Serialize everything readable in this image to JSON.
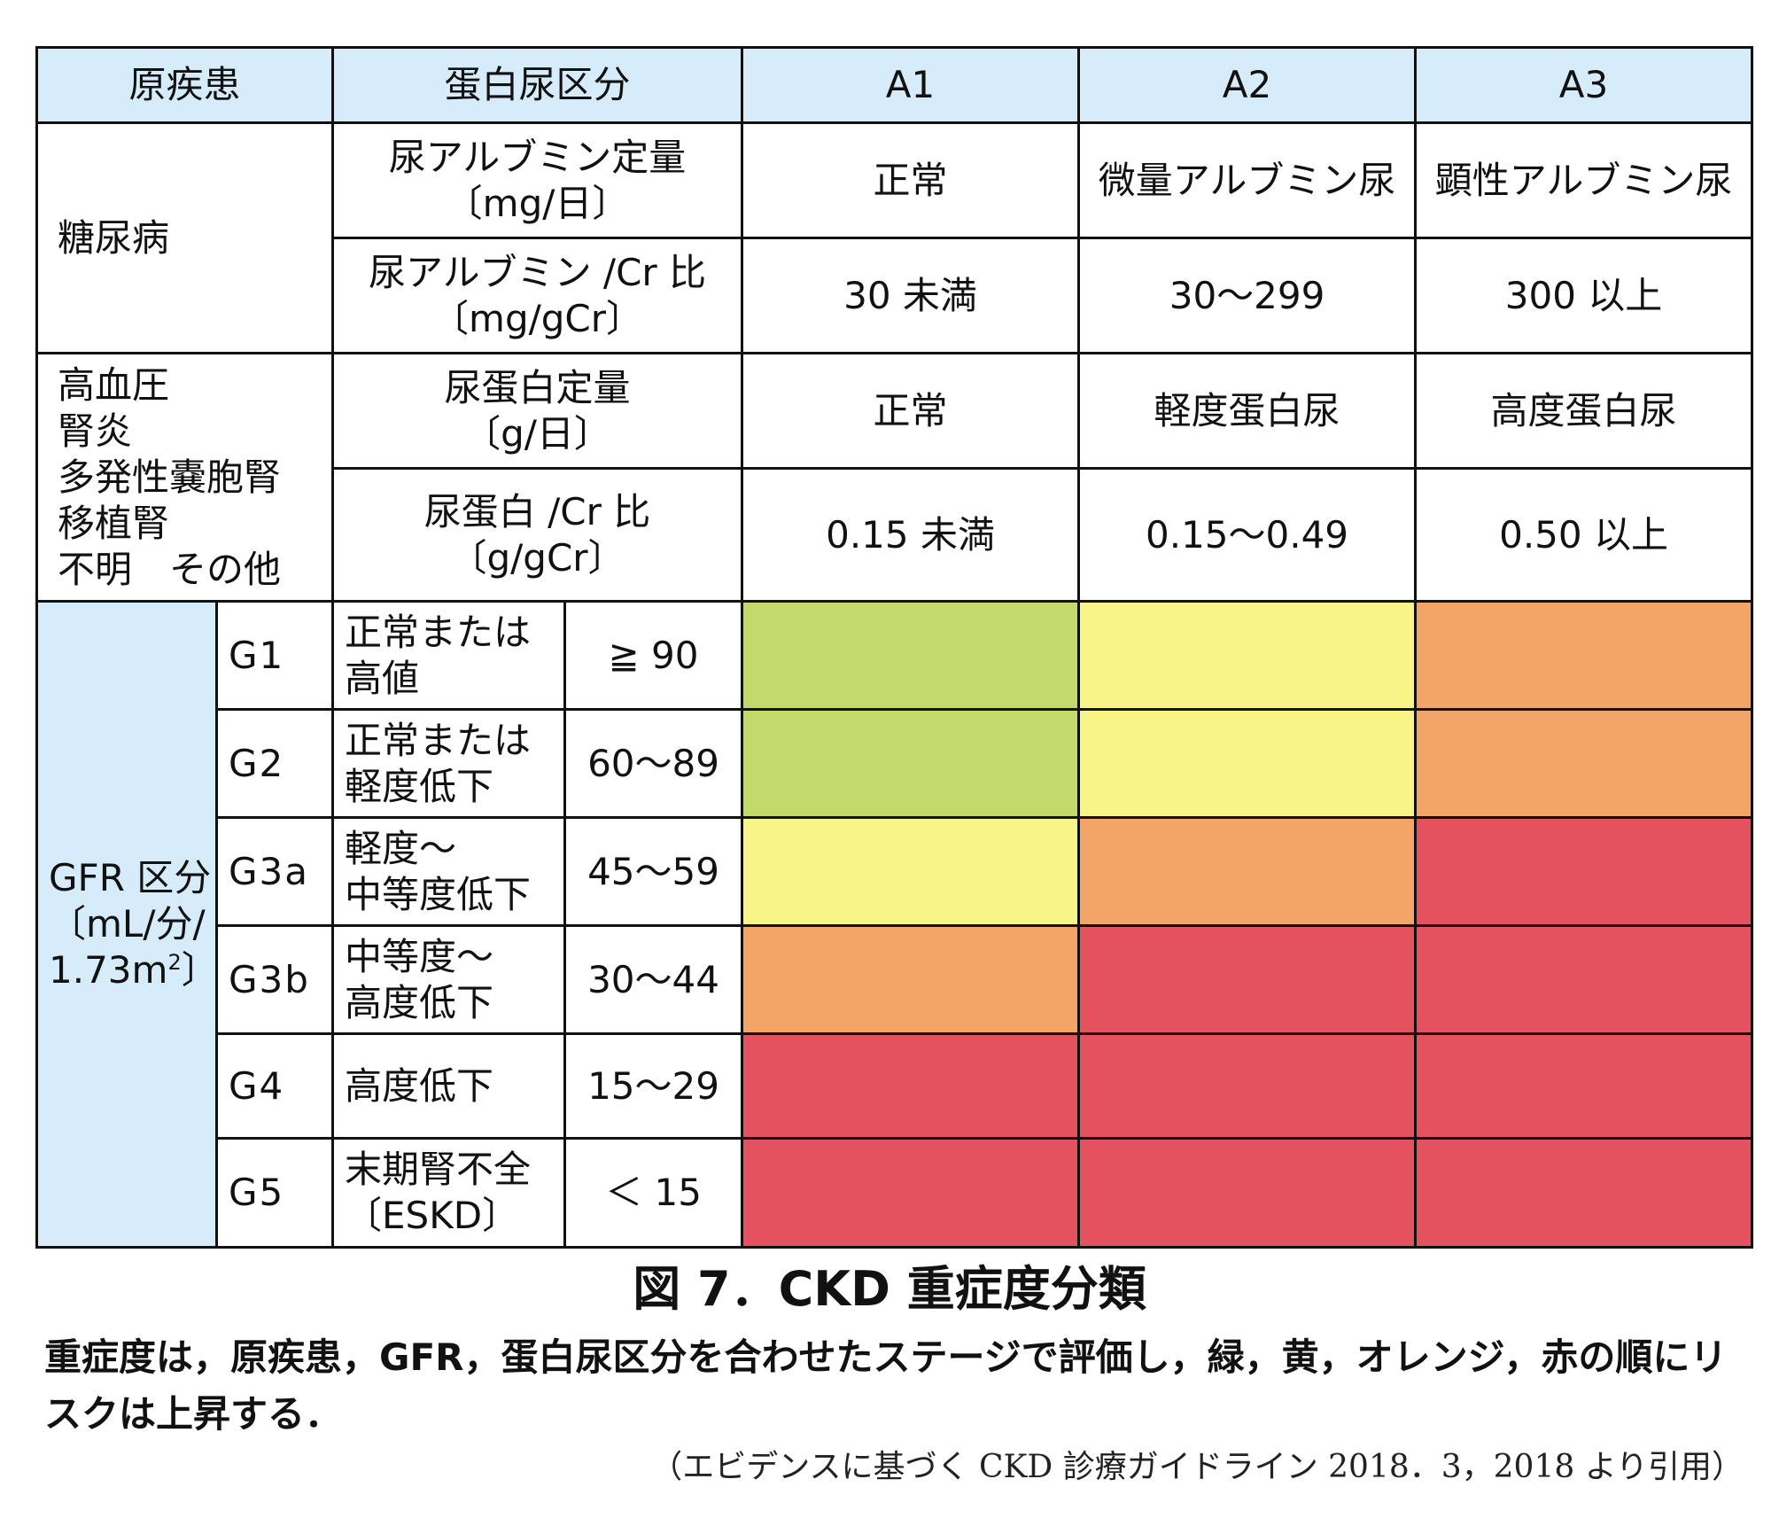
{
  "header": {
    "disease": "原疾患",
    "proteinuria_category": "蛋白尿区分",
    "a1": "A1",
    "a2": "A2",
    "a3": "A3"
  },
  "diabetes": {
    "disease": "糖尿病",
    "measure1_line1": "尿アルブミン定量",
    "measure1_line2": "〔mg/日〕",
    "measure2_line1": "尿アルブミン /Cr 比",
    "measure2_line2": "〔mg/gCr〕",
    "a1_label": "正常",
    "a2_label": "微量アルブミン尿",
    "a3_label": "顕性アルブミン尿",
    "a1_value": "30 未満",
    "a2_value": "30〜299",
    "a3_value": "300 以上"
  },
  "other": {
    "disease_lines": [
      "高血圧",
      "腎炎",
      "多発性嚢胞腎",
      "移植腎",
      "不明　その他"
    ],
    "measure1_line1": "尿蛋白定量",
    "measure1_line2": "〔g/日〕",
    "measure2_line1": "尿蛋白 /Cr 比",
    "measure2_line2": "〔g/gCr〕",
    "a1_label": "正常",
    "a2_label": "軽度蛋白尿",
    "a3_label": "高度蛋白尿",
    "a1_value": "0.15 未満",
    "a2_value": "0.15〜0.49",
    "a3_value": "0.50 以上"
  },
  "gfr": {
    "label_line1": "GFR 区分",
    "label_line2": "〔mL/分/",
    "label_line3": "1.73m",
    "label_sup": "2",
    "label_end": "〕",
    "rows": [
      {
        "code": "G1",
        "desc_line1": "正常または",
        "desc_line2": "高値",
        "range": "≧ 90",
        "risk": [
          "green",
          "yellow",
          "orange"
        ]
      },
      {
        "code": "G2",
        "desc_line1": "正常または",
        "desc_line2": "軽度低下",
        "range": "60〜89",
        "risk": [
          "green",
          "yellow",
          "orange"
        ]
      },
      {
        "code": "G3a",
        "desc_line1": "軽度〜",
        "desc_line2": "中等度低下",
        "range": "45〜59",
        "risk": [
          "yellow",
          "orange",
          "red"
        ]
      },
      {
        "code": "G3b",
        "desc_line1": "中等度〜",
        "desc_line2": "高度低下",
        "range": "30〜44",
        "risk": [
          "orange",
          "red",
          "red"
        ]
      },
      {
        "code": "G4",
        "desc_line1": "高度低下",
        "desc_line2": "",
        "range": "15〜29",
        "risk": [
          "red",
          "red",
          "red"
        ]
      },
      {
        "code": "G5",
        "desc_line1": "末期腎不全",
        "desc_line2": "〔ESKD〕",
        "range": "＜ 15",
        "risk": [
          "red",
          "red",
          "red"
        ]
      }
    ]
  },
  "risk_colors": {
    "green": "#c4d96c",
    "yellow": "#f9f487",
    "orange": "#f2a566",
    "red": "#e5525f"
  },
  "header_bg": "#d6ecfa",
  "caption": {
    "title": "図 7．CKD 重症度分類",
    "body": "重症度は，原疾患，GFR，蛋白尿区分を合わせたステージで評価し，緑，黄，オレンジ，赤の順にリスクは上昇する．",
    "citation": "（エビデンスに基づく CKD 診療ガイドライン 2018．3，2018 より引用）"
  }
}
